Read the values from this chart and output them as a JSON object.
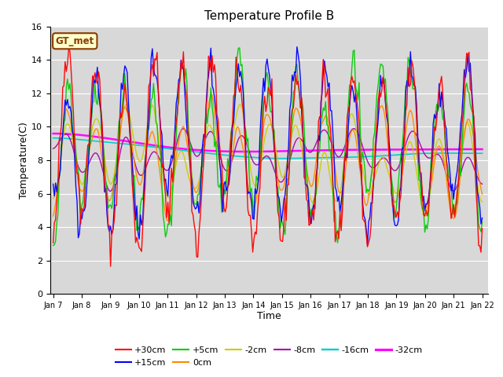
{
  "title": "Temperature Profile B",
  "xlabel": "Time",
  "ylabel": "Temperature(C)",
  "ylim": [
    0,
    16
  ],
  "background_color": "#d8d8d8",
  "plot_bg_color": "#d8d8d8",
  "legend_label": "GT_met",
  "series_labels": [
    "+30cm",
    "+15cm",
    "+5cm",
    "0cm",
    "-2cm",
    "-8cm",
    "-16cm",
    "-32cm"
  ],
  "series_colors": [
    "#ff0000",
    "#0000ff",
    "#00cc00",
    "#ff8800",
    "#cccc00",
    "#aa00aa",
    "#00cccc",
    "#ff00ff"
  ],
  "series_linewidths": [
    1.0,
    1.0,
    1.0,
    1.0,
    1.0,
    1.0,
    1.2,
    1.8
  ],
  "xtick_labels": [
    "Jan 7",
    "Jan 8",
    "Jan 9",
    "Jan 10",
    "Jan 11",
    "Jan 12",
    "Jan 13",
    "Jan 14",
    "Jan 15",
    "Jan 16",
    "Jan 17",
    "Jan 18",
    "Jan 19",
    "Jan 20",
    "Jan 21",
    "Jan 22"
  ],
  "n_points": 360,
  "seed": 42,
  "figsize": [
    6.4,
    4.8
  ],
  "dpi": 100
}
